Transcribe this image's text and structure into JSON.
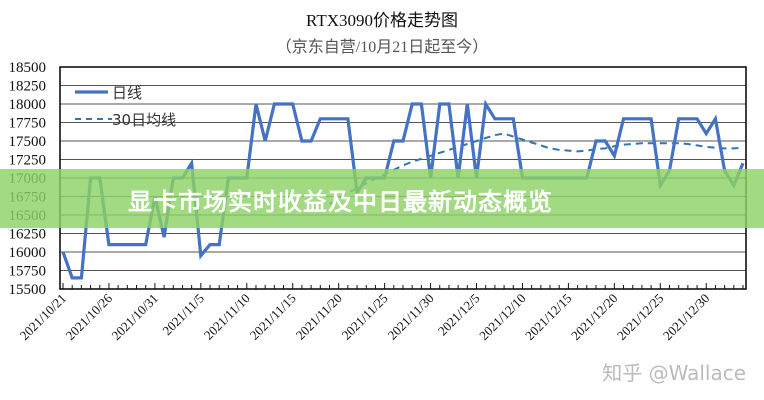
{
  "header": {
    "title": "RTX3090价格走势图",
    "subtitle": "（京东自营/10月21日起至今）"
  },
  "banner": {
    "text": "显卡市场实时收益及中日最新动态概览",
    "color": "#8cd264"
  },
  "watermark": {
    "text": "知乎 @Wallace"
  },
  "legend": {
    "daily_label": "日线",
    "ma30_label": "30日均线"
  },
  "colors": {
    "daily_line": "#4472c4",
    "ma30_line": "#2e75b6",
    "grid": "#404040"
  },
  "chart_data": {
    "type": "line",
    "title": "RTX3090价格走势图",
    "subtitle": "（京东自营/10月21日起至今）",
    "xlabel": "",
    "ylabel": "",
    "ylim": [
      15500,
      18500
    ],
    "yticks": [
      15500,
      15750,
      16000,
      16250,
      16500,
      16750,
      17000,
      17250,
      17500,
      17750,
      18000,
      18250,
      18500
    ],
    "xtick_labels": [
      "2021/10/21",
      "2021/10/26",
      "2021/10/31",
      "2021/11/5",
      "2021/11/10",
      "2021/11/15",
      "2021/11/20",
      "2021/11/25",
      "2021/11/30",
      "2021/12/5",
      "2021/12/10",
      "2021/12/15",
      "2021/12/20",
      "2021/12/25",
      "2021/12/30"
    ],
    "grid": true,
    "legend_position": "upper-left",
    "x_start": "2021/10/21",
    "x_end": "2022/1/3",
    "series": [
      {
        "name": "日线",
        "style": "solid",
        "values": [
          16000,
          15650,
          15650,
          17000,
          17000,
          16100,
          16100,
          16100,
          16100,
          16100,
          16750,
          16200,
          17000,
          17000,
          17200,
          15950,
          16100,
          16100,
          17000,
          17000,
          17000,
          18000,
          17500,
          18000,
          18000,
          18000,
          17500,
          17500,
          17800,
          17800,
          17800,
          17800,
          16800,
          17000,
          17000,
          17000,
          17500,
          17500,
          18000,
          18000,
          17000,
          18000,
          18000,
          17000,
          18000,
          17000,
          18000,
          17800,
          17800,
          17800,
          17000,
          17000,
          17000,
          17000,
          17000,
          17000,
          17000,
          17000,
          17500,
          17500,
          17300,
          17800,
          17800,
          17800,
          17800,
          16900,
          17100,
          17800,
          17800,
          17800,
          17600,
          17800,
          17100,
          16900,
          17200
        ]
      },
      {
        "name": "30日均线",
        "style": "dashed",
        "start_index": 29,
        "values": [
          16650,
          16720,
          16800,
          16860,
          16930,
          16990,
          17050,
          17110,
          17170,
          17220,
          17260,
          17300,
          17340,
          17380,
          17420,
          17460,
          17500,
          17540,
          17580,
          17600,
          17560,
          17520,
          17480,
          17440,
          17400,
          17380,
          17370,
          17360,
          17370,
          17390,
          17400,
          17430,
          17450,
          17460,
          17470,
          17470,
          17470,
          17470,
          17470,
          17460,
          17440,
          17420,
          17410,
          17400,
          17400,
          17410
        ]
      }
    ]
  }
}
